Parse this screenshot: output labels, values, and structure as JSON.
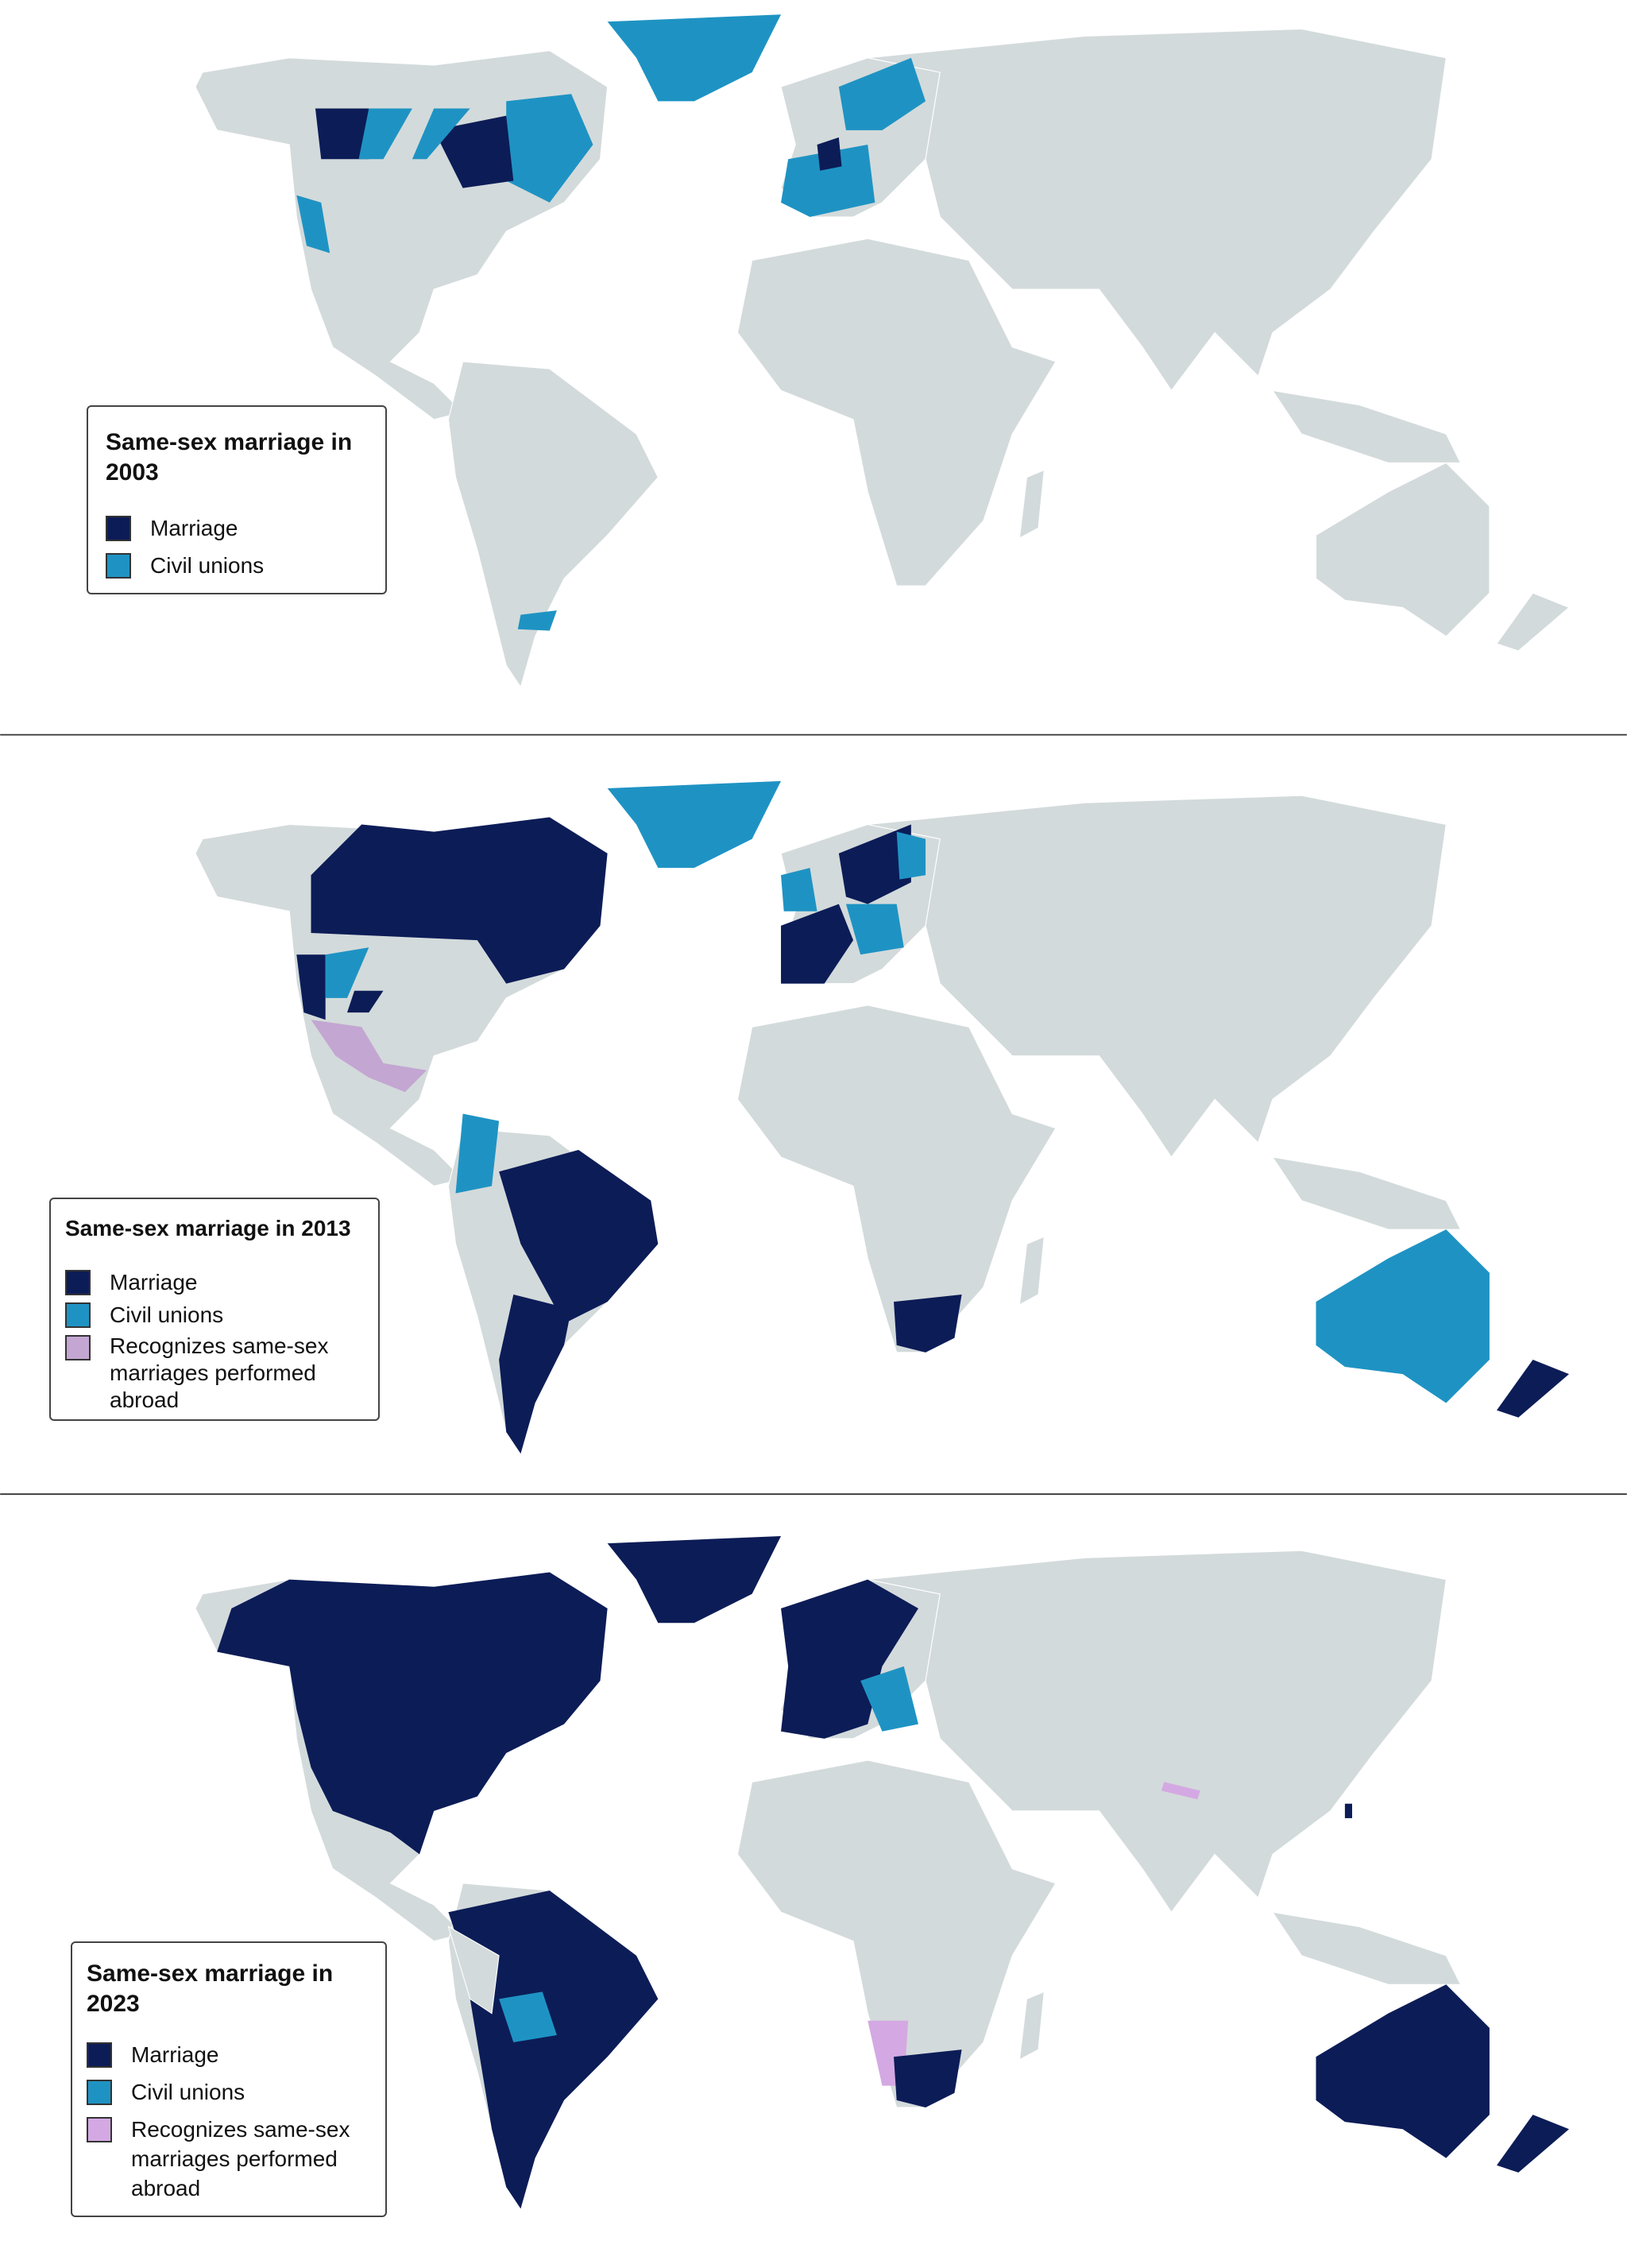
{
  "colors": {
    "land": "#d3dadb",
    "marriage": "#0c1c57",
    "civil_unions": "#1e93c3",
    "recognizes_2013": "#c3a6d2",
    "recognizes_2023": "#d4a9e3"
  },
  "panels": [
    {
      "title": "Same-sex marriage in 2003",
      "items": [
        "Marriage",
        "Civil unions"
      ]
    },
    {
      "title": "Same-sex marriage in 2013",
      "items": [
        "Marriage",
        "Civil unions",
        "Recognizes same-sex marriages performed abroad"
      ]
    },
    {
      "title": "Same-sex marriage in 2023",
      "items": [
        "Marriage",
        "Civil unions",
        "Recognizes same-sex marriages performed abroad"
      ]
    }
  ]
}
